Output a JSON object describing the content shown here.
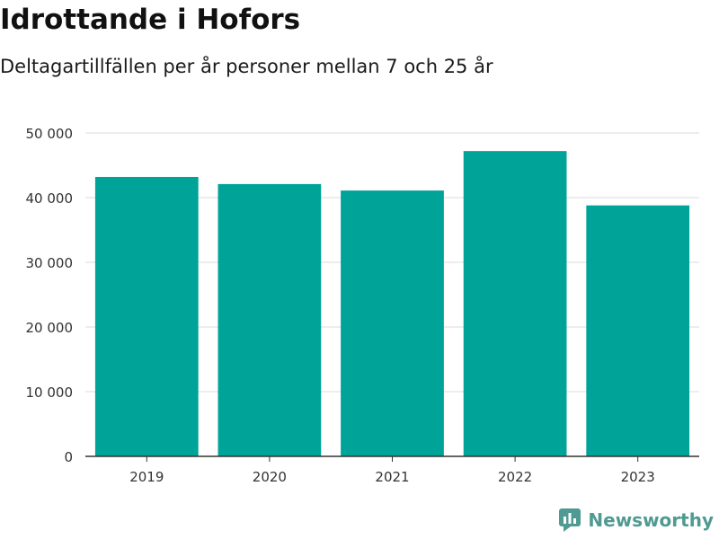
{
  "header": {
    "title": "Idrottande i Hofors",
    "subtitle": "Deltagartillfällen per år personer mellan 7 och 25 år"
  },
  "brand": {
    "name": "Newsworthy",
    "icon": "bar-chart-icon"
  },
  "colors": {
    "bar": "#00a398",
    "gridline": "#e2e2e2",
    "axis": "#333333",
    "brand": "#4f9a92"
  },
  "chart_data": {
    "type": "bar",
    "title": "Idrottande i Hofors",
    "subtitle": "Deltagartillfällen per år personer mellan 7 och 25 år",
    "xlabel": "",
    "ylabel": "",
    "categories": [
      "2019",
      "2020",
      "2021",
      "2022",
      "2023"
    ],
    "values": [
      43200,
      42100,
      41100,
      47200,
      38800
    ],
    "ylim": [
      0,
      50000
    ],
    "yticks": [
      0,
      10000,
      20000,
      30000,
      40000,
      50000
    ],
    "ytick_labels": [
      "0",
      "10 000",
      "20 000",
      "30 000",
      "40 000",
      "50 000"
    ],
    "grid": true,
    "legend": "none"
  }
}
